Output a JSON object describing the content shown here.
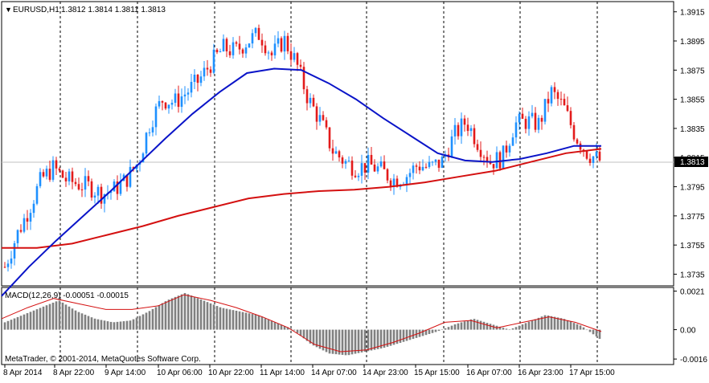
{
  "window": {
    "title": "EURUSD,H1",
    "quote_values": "1.3812 1.3814 1.3811 1.3813",
    "copyright": "MetaTrader, © 2001-2014, MetaQuotes Software Corp."
  },
  "price_badge": {
    "value": "1.3813",
    "background": "#000000",
    "text_color": "#ffffff"
  },
  "colors": {
    "background": "#ffffff",
    "bull_candle": "#1e90ff",
    "bear_candle": "#e31b1b",
    "ma_fast": "#0a14c8",
    "ma_slow": "#d41010",
    "macd_hist": "#808080",
    "macd_signal": "#d41010",
    "grid_vertical": "#000000"
  },
  "chart_data": [
    {
      "type": "candlestick",
      "symbol": "EURUSD",
      "timeframe": "H1",
      "ylim": [
        1.3727,
        1.3922
      ],
      "y_ticks": [
        "1.3915",
        "1.3895",
        "1.3875",
        "1.3855",
        "1.3835",
        "1.3815",
        "1.3795",
        "1.3775",
        "1.3755",
        "1.3735"
      ],
      "x_labels": [
        "8 Apr 2014",
        "8 Apr 22:00",
        "9 Apr 14:00",
        "10 Apr 06:00",
        "10 Apr 22:00",
        "11 Apr 14:00",
        "14 Apr 07:00",
        "14 Apr 23:00",
        "15 Apr 15:00",
        "16 Apr 07:00",
        "16 Apr 23:00",
        "17 Apr 15:00"
      ],
      "close_series": [
        1.374,
        1.3762,
        1.378,
        1.38,
        1.3808,
        1.38,
        1.3797,
        1.3795,
        1.379,
        1.3793,
        1.38,
        1.3812,
        1.384,
        1.3855,
        1.3853,
        1.386,
        1.3868,
        1.388,
        1.389,
        1.3888,
        1.3895,
        1.39,
        1.3885,
        1.3896,
        1.388,
        1.3855,
        1.384,
        1.382,
        1.3812,
        1.3808,
        1.381,
        1.3806,
        1.38,
        1.3802,
        1.381,
        1.3808,
        1.3812,
        1.383,
        1.384,
        1.3825,
        1.3812,
        1.3815,
        1.3838,
        1.384,
        1.3838,
        1.386,
        1.385,
        1.383,
        1.3818,
        1.3813
      ],
      "moving_averages": [
        {
          "values": [
            1.372,
            1.374,
            1.3758,
            1.3775,
            1.3792,
            1.381,
            1.3828,
            1.3845,
            1.386,
            1.3873,
            1.3876,
            1.3875,
            1.3866,
            1.3855,
            1.3842,
            1.383,
            1.3818,
            1.3813,
            1.3812,
            1.3814,
            1.3818,
            1.3823,
            1.3823
          ]
        },
        {
          "values": [
            1.3753,
            1.3753,
            1.3756,
            1.3762,
            1.3768,
            1.3775,
            1.3781,
            1.3787,
            1.379,
            1.3792,
            1.3793,
            1.3795,
            1.3798,
            1.3802,
            1.3806,
            1.3812,
            1.3818,
            1.3821
          ]
        }
      ]
    },
    {
      "type": "bar",
      "title": "MACD(12,26,9) -0.00051 -0.00015",
      "ylim": [
        -0.0019,
        0.0023
      ],
      "y_ticks": [
        "0.0021",
        "0.00",
        "-0.0016"
      ],
      "hist_values": [
        0.0004,
        0.0008,
        0.0012,
        0.0016,
        0.001,
        0.0006,
        0.0004,
        0.0005,
        0.001,
        0.0016,
        0.002,
        0.0016,
        0.0012,
        0.001,
        0.0008,
        0.0004,
        0.0,
        -0.0008,
        -0.0013,
        -0.0014,
        -0.0012,
        -0.001,
        -0.0007,
        -0.0004,
        -0.0001,
        0.0003,
        0.0006,
        0.0003,
        0.0,
        0.0004,
        0.0008,
        0.0006,
        0.0002,
        -0.0005
      ],
      "signal_values": [
        0.0006,
        0.0012,
        0.0017,
        0.0014,
        0.0011,
        0.0011,
        0.0013,
        0.0019,
        0.0016,
        0.0012,
        0.0007,
        0.0001,
        -0.0008,
        -0.0012,
        -0.0011,
        -0.0007,
        -0.0002,
        0.0004,
        0.0005,
        0.0001,
        0.0004,
        0.0007,
        0.0004,
        -0.0001
      ]
    }
  ]
}
